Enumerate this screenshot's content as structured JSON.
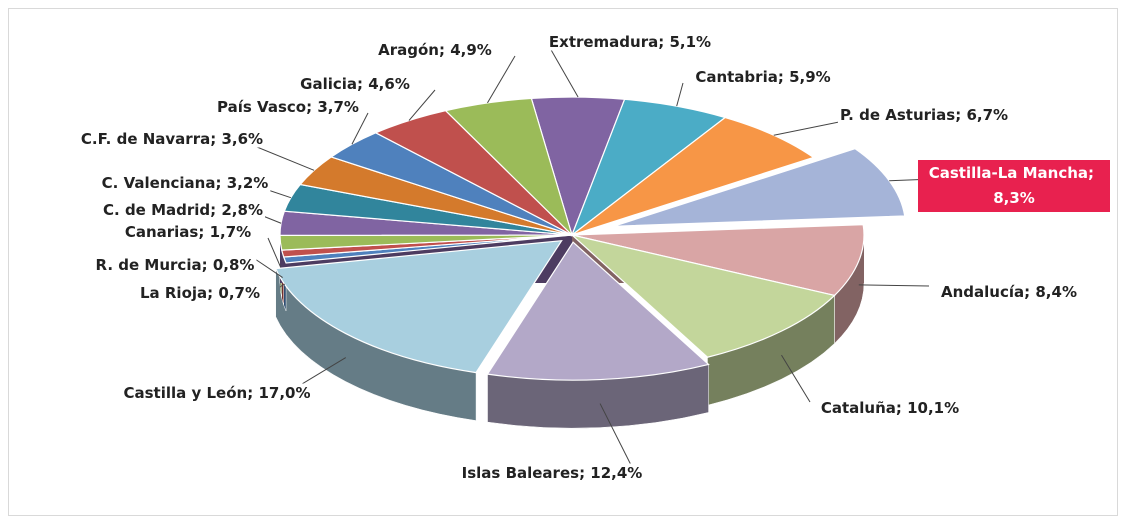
{
  "chart_data": {
    "type": "pie",
    "categories": [
      "Extremadura",
      "Cantabria",
      "P. de Asturias",
      "Castilla-La Mancha",
      "Andalucía",
      "Cataluña",
      "Islas Baleares",
      "Castilla y León",
      "La Rioja",
      "R. de Murcia",
      "Canarias",
      "C. de Madrid",
      "C. Valenciana",
      "C.F. de Navarra",
      "País Vasco",
      "Galicia",
      "Aragón"
    ],
    "values": [
      5.1,
      5.9,
      6.7,
      8.3,
      8.4,
      10.1,
      12.4,
      17.0,
      0.7,
      0.8,
      1.7,
      2.8,
      3.2,
      3.6,
      3.7,
      4.6,
      4.9
    ],
    "value_labels": [
      "5,1%",
      "5,9%",
      "6,7%",
      "8,3%",
      "8,4%",
      "10,1%",
      "12,4%",
      "17,0%",
      "0,7%",
      "0,8%",
      "1,7%",
      "2,8%",
      "3,2%",
      "3,6%",
      "3,7%",
      "4,6%",
      "4,9%"
    ],
    "label_separator": "; ",
    "colors": [
      "#8064a2",
      "#4bacc6",
      "#f79646",
      "#a5b4d8",
      "#d9a5a5",
      "#c3d69b",
      "#b3a8c8",
      "#a8cfdf",
      "#4f81bd",
      "#c0504d",
      "#9bbb59",
      "#8064a2",
      "#31859c",
      "#d47a2c",
      "#4f81bd",
      "#c0504d",
      "#9bbb59"
    ],
    "highlight_index": 3,
    "highlight_color": "#e8214f"
  }
}
